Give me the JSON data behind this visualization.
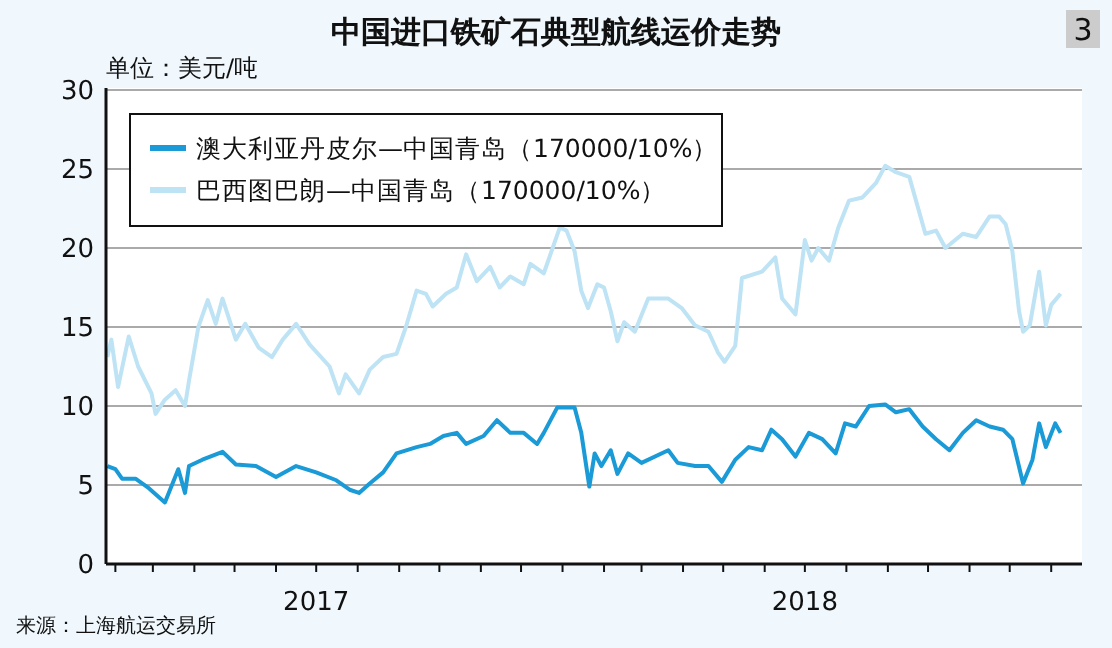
{
  "chart_data": {
    "type": "line",
    "title": "中国进口铁矿石典型航线运价走势",
    "ylabel": "单位：美元/吨",
    "annotations": [
      "来源：上海航运交易所",
      "3"
    ],
    "xlim": [
      "2017-01-25",
      "2019-01-24"
    ],
    "ylim": [
      0,
      30
    ],
    "yticks": [
      0,
      5,
      10,
      15,
      20,
      25,
      30
    ],
    "xticks": [
      {
        "value": "2017-02-01",
        "label": null
      },
      {
        "value": "2017-03-01",
        "label": null
      },
      {
        "value": "2017-04-01",
        "label": null
      },
      {
        "value": "2017-05-01",
        "label": null
      },
      {
        "value": "2017-06-01",
        "label": null
      },
      {
        "value": "2017-07-01",
        "label": "2017"
      },
      {
        "value": "2017-08-01",
        "label": null
      },
      {
        "value": "2017-09-01",
        "label": null
      },
      {
        "value": "2017-10-01",
        "label": null
      },
      {
        "value": "2017-11-01",
        "label": null
      },
      {
        "value": "2017-12-01",
        "label": null
      },
      {
        "value": "2018-01-01",
        "label": null
      },
      {
        "value": "2018-02-01",
        "label": null
      },
      {
        "value": "2018-03-01",
        "label": null
      },
      {
        "value": "2018-04-01",
        "label": null
      },
      {
        "value": "2018-05-01",
        "label": null
      },
      {
        "value": "2018-06-01",
        "label": null
      },
      {
        "value": "2018-07-01",
        "label": "2018"
      },
      {
        "value": "2018-08-01",
        "label": null
      },
      {
        "value": "2018-09-01",
        "label": null
      },
      {
        "value": "2018-10-01",
        "label": null
      },
      {
        "value": "2018-11-01",
        "label": null
      },
      {
        "value": "2018-12-01",
        "label": null
      },
      {
        "value": "2019-01-01",
        "label": null
      }
    ],
    "grid": "y",
    "legend": "top left",
    "series": [
      {
        "name": "澳大利亚丹皮尔—中国青岛（170000/10%）",
        "color": "#1a9ad6",
        "x": [
          "2017-01-26",
          "2017-02-01",
          "2017-02-06",
          "2017-02-16",
          "2017-02-26",
          "2017-03-10",
          "2017-03-20",
          "2017-03-25",
          "2017-03-28",
          "2017-04-07",
          "2017-04-22",
          "2017-05-02",
          "2017-05-17",
          "2017-06-01",
          "2017-06-16",
          "2017-07-01",
          "2017-07-16",
          "2017-07-26",
          "2017-08-02",
          "2017-08-10",
          "2017-08-20",
          "2017-08-30",
          "2017-09-14",
          "2017-09-24",
          "2017-10-04",
          "2017-10-14",
          "2017-10-21",
          "2017-11-03",
          "2017-11-13",
          "2017-11-23",
          "2017-12-03",
          "2017-12-13",
          "2017-12-18",
          "2017-12-28",
          "2018-01-10",
          "2018-01-15",
          "2018-01-21",
          "2018-01-25",
          "2018-01-30",
          "2018-02-06",
          "2018-02-11",
          "2018-02-19",
          "2018-03-01",
          "2018-03-21",
          "2018-03-28",
          "2018-04-10",
          "2018-04-20",
          "2018-04-30",
          "2018-05-10",
          "2018-05-20",
          "2018-05-30",
          "2018-06-06",
          "2018-06-14",
          "2018-06-24",
          "2018-07-04",
          "2018-07-14",
          "2018-07-24",
          "2018-07-31",
          "2018-08-08",
          "2018-08-18",
          "2018-08-30",
          "2018-09-07",
          "2018-09-17",
          "2018-09-27",
          "2018-10-07",
          "2018-10-17",
          "2018-10-27",
          "2018-11-06",
          "2018-11-16",
          "2018-11-26",
          "2018-12-03",
          "2018-12-11",
          "2018-12-18",
          "2018-12-23",
          "2018-12-28",
          "2019-01-04",
          "2019-01-08"
        ],
        "values": [
          6.2,
          6.0,
          5.4,
          5.4,
          4.8,
          3.9,
          6.0,
          4.5,
          6.2,
          6.6,
          7.1,
          6.3,
          6.2,
          5.5,
          6.2,
          5.8,
          5.3,
          4.7,
          4.5,
          5.1,
          5.8,
          7.0,
          7.4,
          7.6,
          8.1,
          8.3,
          7.6,
          8.1,
          9.1,
          8.3,
          8.3,
          7.6,
          8.3,
          9.9,
          9.9,
          8.3,
          4.9,
          7.0,
          6.2,
          7.2,
          5.7,
          7.0,
          6.4,
          7.2,
          6.4,
          6.2,
          6.2,
          5.2,
          6.6,
          7.4,
          7.2,
          8.5,
          7.9,
          6.8,
          8.3,
          7.9,
          7.0,
          8.9,
          8.7,
          10.0,
          10.1,
          9.6,
          9.8,
          8.7,
          7.9,
          7.2,
          8.3,
          9.1,
          8.7,
          8.5,
          7.9,
          5.1,
          6.6,
          8.9,
          7.4,
          8.9,
          8.3
        ]
      },
      {
        "name": "巴西图巴朗—中国青岛（170000/10%）",
        "color": "#bde3f5",
        "x": [
          "2017-01-26",
          "2017-01-29",
          "2017-02-03",
          "2017-02-11",
          "2017-02-18",
          "2017-02-28",
          "2017-03-03",
          "2017-03-10",
          "2017-03-18",
          "2017-03-25",
          "2017-03-28",
          "2017-04-04",
          "2017-04-11",
          "2017-04-17",
          "2017-04-22",
          "2017-05-02",
          "2017-05-09",
          "2017-05-19",
          "2017-05-29",
          "2017-06-06",
          "2017-06-16",
          "2017-06-26",
          "2017-07-11",
          "2017-07-18",
          "2017-07-23",
          "2017-08-02",
          "2017-08-10",
          "2017-08-20",
          "2017-08-30",
          "2017-09-06",
          "2017-09-14",
          "2017-09-21",
          "2017-09-26",
          "2017-10-06",
          "2017-10-14",
          "2017-10-21",
          "2017-10-29",
          "2017-11-08",
          "2017-11-15",
          "2017-11-23",
          "2017-12-03",
          "2017-12-08",
          "2017-12-18",
          "2017-12-30",
          "2018-01-04",
          "2018-01-10",
          "2018-01-15",
          "2018-01-20",
          "2018-01-27",
          "2018-02-01",
          "2018-02-06",
          "2018-02-11",
          "2018-02-16",
          "2018-02-24",
          "2018-03-06",
          "2018-03-21",
          "2018-03-31",
          "2018-04-10",
          "2018-04-20",
          "2018-04-27",
          "2018-05-02",
          "2018-05-10",
          "2018-05-15",
          "2018-05-30",
          "2018-06-09",
          "2018-06-14",
          "2018-06-24",
          "2018-07-01",
          "2018-07-06",
          "2018-07-11",
          "2018-07-19",
          "2018-07-26",
          "2018-08-03",
          "2018-08-13",
          "2018-08-23",
          "2018-08-30",
          "2018-09-07",
          "2018-09-17",
          "2018-09-29",
          "2018-10-07",
          "2018-10-14",
          "2018-10-27",
          "2018-11-06",
          "2018-11-16",
          "2018-11-23",
          "2018-11-28",
          "2018-12-03",
          "2018-12-08",
          "2018-12-11",
          "2018-12-16",
          "2018-12-23",
          "2018-12-28",
          "2019-01-01",
          "2019-01-08"
        ],
        "values": [
          13.1,
          14.2,
          11.2,
          14.4,
          12.5,
          10.8,
          9.5,
          10.4,
          11.0,
          10.0,
          11.6,
          15.0,
          16.7,
          15.2,
          16.8,
          14.2,
          15.2,
          13.7,
          13.1,
          14.2,
          15.2,
          13.9,
          12.5,
          10.8,
          12.0,
          10.8,
          12.3,
          13.1,
          13.3,
          15.0,
          17.3,
          17.1,
          16.3,
          17.1,
          17.5,
          19.6,
          17.9,
          18.8,
          17.5,
          18.2,
          17.7,
          19.0,
          18.4,
          21.3,
          21.1,
          19.8,
          17.3,
          16.2,
          17.7,
          17.5,
          16.0,
          14.1,
          15.3,
          14.7,
          16.8,
          16.8,
          16.2,
          15.1,
          14.7,
          13.4,
          12.8,
          13.8,
          18.1,
          18.5,
          19.4,
          16.8,
          15.8,
          20.5,
          19.2,
          20.0,
          19.2,
          21.3,
          23.0,
          23.2,
          24.1,
          25.2,
          24.8,
          24.5,
          20.9,
          21.1,
          20.0,
          20.9,
          20.7,
          22.0,
          22.0,
          21.5,
          19.8,
          16.0,
          14.7,
          15.1,
          18.5,
          15.1,
          16.4,
          17.1
        ]
      }
    ]
  }
}
